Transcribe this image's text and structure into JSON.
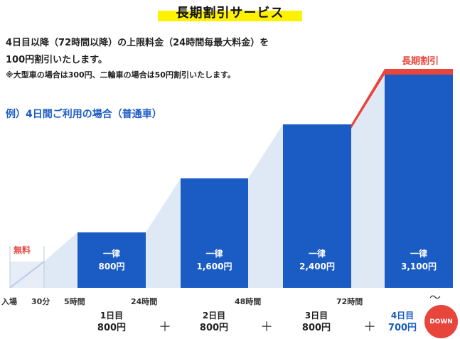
{
  "title": "長期割引サービス",
  "description": {
    "line1": "4日目以降（72時間以降）の上限料金（24時間毎最大料金）を",
    "line2": "100円割引いたします。",
    "note": "※大型車の場合は300円、二輪車の場合は50円割引いたします。"
  },
  "example_label": "例）4日間ご利用の場合（普通車）",
  "free_label": "無料",
  "discount_label": "長期割引",
  "bars": [
    {
      "line1": "一律",
      "line2": "800円"
    },
    {
      "line1": "一律",
      "line2": "1,600円"
    },
    {
      "line1": "一律",
      "line2": "2,400円"
    },
    {
      "line1": "一律",
      "line2": "3,100円"
    }
  ],
  "ticks": [
    "入場",
    "30分",
    "5時間",
    "24時間",
    "48時間",
    "72時間"
  ],
  "tilde": "〜",
  "days": [
    {
      "label": "1日目",
      "value": "800円"
    },
    {
      "label": "2日目",
      "value": "800円"
    },
    {
      "label": "3日目",
      "value": "800円"
    },
    {
      "label": "4日目",
      "value": "700円"
    }
  ],
  "plus": "＋",
  "down_badge": "DOWN",
  "colors": {
    "bar_blue": "#1a5bc4",
    "ramp_light": "#dfe9f6",
    "accent_red": "#e8453c",
    "highlight_yellow": "#fff200"
  }
}
